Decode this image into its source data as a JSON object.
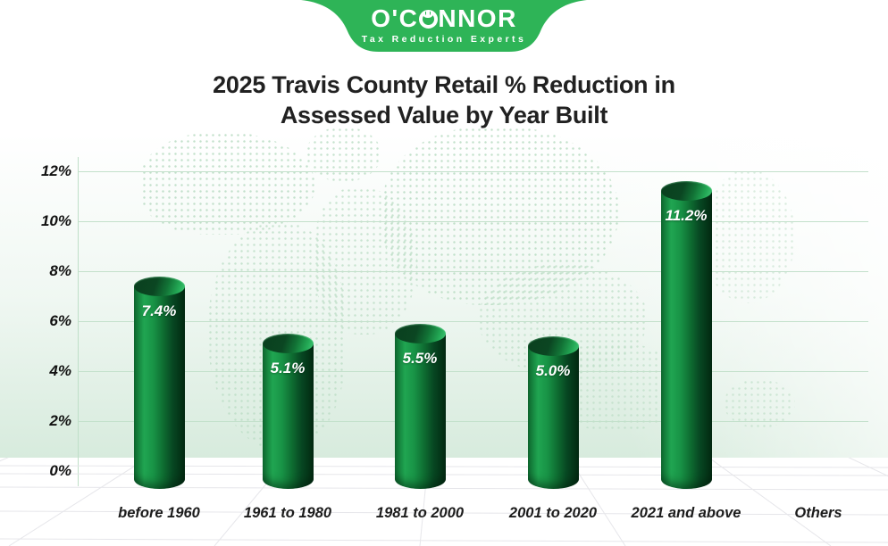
{
  "logo": {
    "brand_part1": "O'C",
    "brand_part2": "NNOR",
    "brand_full": "O'CONNOR",
    "tagline": "Tax Reduction Experts",
    "green": "#2eb457"
  },
  "title": {
    "line1": "2025 Travis County Retail % Reduction in",
    "line2": "Assessed Value by Year Built"
  },
  "chart_data": {
    "type": "bar",
    "title": "2025 Travis County Retail % Reduction in Assessed Value by Year Built",
    "categories": [
      "before 1960",
      "1961 to 1980",
      "1981 to 2000",
      "2001 to 2020",
      "2021 and above",
      "Others"
    ],
    "values": [
      7.4,
      5.1,
      5.5,
      5.0,
      11.2,
      null
    ],
    "value_labels": [
      "7.4%",
      "5.1%",
      "5.5%",
      "5.0%",
      "11.2%",
      ""
    ],
    "xlabel": "",
    "ylabel": "",
    "y_ticks": [
      "0%",
      "2%",
      "4%",
      "6%",
      "8%",
      "10%",
      "12%"
    ],
    "y_tick_values": [
      0,
      2,
      4,
      6,
      8,
      10,
      12
    ],
    "ylim": [
      0,
      12
    ],
    "grid": true,
    "legend": "none",
    "bar_style": "3d-cylinder",
    "bar_color_bright": "#20a551",
    "bar_color_dark": "#032a12",
    "gridline_color": "#c3e0cb",
    "label_color": "#ffffff"
  }
}
